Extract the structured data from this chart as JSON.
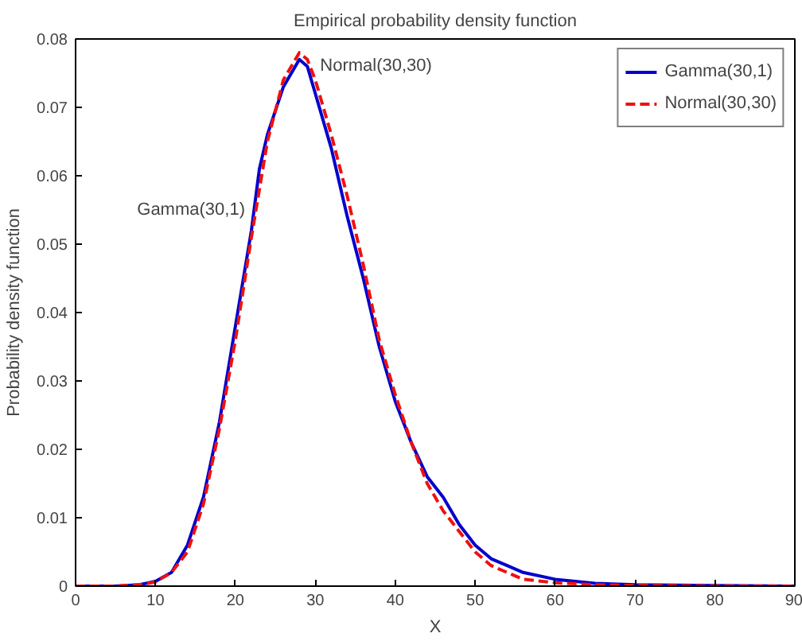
{
  "chart_data": {
    "type": "line",
    "title": "Empirical probability density function",
    "xlabel": "X",
    "ylabel": "Probability density function",
    "xlim": [
      0,
      90
    ],
    "ylim": [
      0,
      0.08
    ],
    "xticks": [
      0,
      10,
      20,
      30,
      40,
      50,
      60,
      70,
      80,
      90
    ],
    "yticks": [
      0,
      0.01,
      0.02,
      0.03,
      0.04,
      0.05,
      0.06,
      0.07,
      0.08
    ],
    "grid": false,
    "legend": "top right",
    "series": [
      {
        "name": "Gamma(30,1)",
        "color": "#0000cc",
        "line_style": "solid",
        "x": [
          0,
          5,
          8,
          10,
          12,
          14,
          16,
          18,
          20,
          22,
          23,
          24,
          26,
          28,
          29,
          30,
          32,
          34,
          36,
          38,
          40,
          42,
          44,
          46,
          48,
          50,
          52,
          54,
          56,
          60,
          65,
          70,
          80,
          90
        ],
        "values": [
          0,
          0,
          0.0002,
          0.0007,
          0.002,
          0.006,
          0.013,
          0.024,
          0.038,
          0.052,
          0.061,
          0.066,
          0.073,
          0.077,
          0.076,
          0.072,
          0.064,
          0.054,
          0.045,
          0.035,
          0.027,
          0.021,
          0.016,
          0.013,
          0.009,
          0.006,
          0.004,
          0.003,
          0.002,
          0.001,
          0.0004,
          0.0002,
          0.0001,
          0
        ]
      },
      {
        "name": "Normal(30,30)",
        "color": "#ee1111",
        "line_style": "dashed",
        "x": [
          0,
          5,
          8,
          10,
          12,
          14,
          16,
          18,
          20,
          22,
          24,
          26,
          28,
          29,
          30,
          32,
          34,
          36,
          38,
          40,
          42,
          44,
          46,
          48,
          50,
          52,
          54,
          56,
          60,
          65,
          70,
          80,
          90
        ],
        "values": [
          0,
          0,
          0.0002,
          0.0006,
          0.002,
          0.005,
          0.012,
          0.023,
          0.036,
          0.051,
          0.065,
          0.074,
          0.078,
          0.077,
          0.074,
          0.066,
          0.057,
          0.047,
          0.036,
          0.028,
          0.021,
          0.015,
          0.011,
          0.008,
          0.005,
          0.003,
          0.002,
          0.001,
          0.0005,
          0.0002,
          0.0001,
          0,
          0
        ]
      }
    ],
    "annotations": [
      {
        "text": "Gamma(30,1)",
        "x": 22,
        "y": 0.055
      },
      {
        "text": "Normal(30,30)",
        "x": 29,
        "y": 0.076
      }
    ]
  }
}
